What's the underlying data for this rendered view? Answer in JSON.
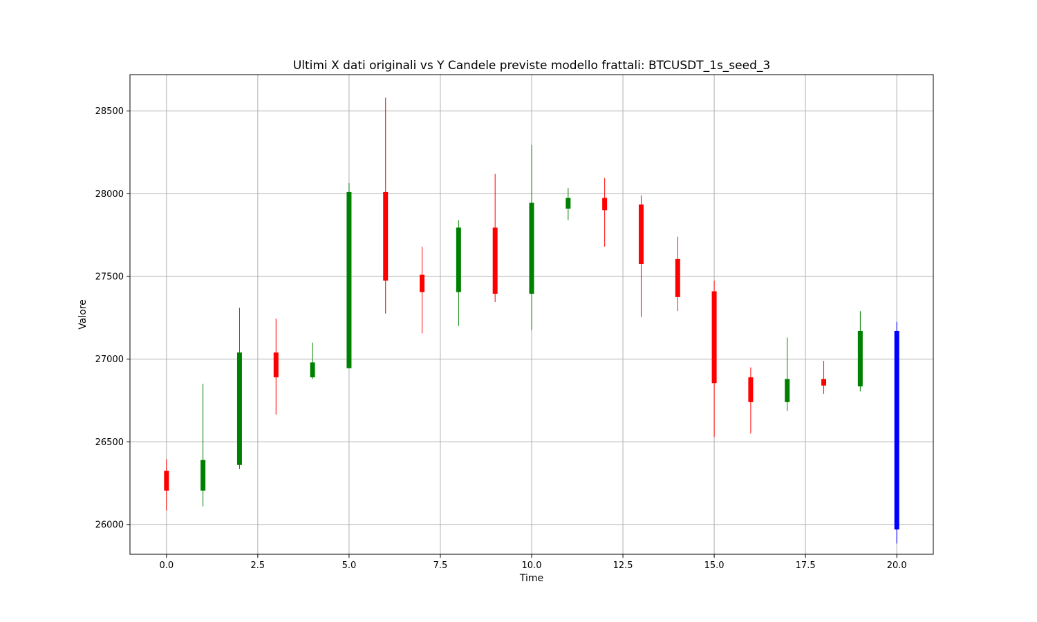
{
  "chart_data": {
    "type": "candlestick",
    "title": "Ultimi X dati originali vs Y Candele previste modello frattali: BTCUSDT_1s_seed_3",
    "xlabel": "Time",
    "ylabel": "Valore",
    "xlim": [
      -1.0,
      21.0
    ],
    "ylim": [
      25820,
      28720
    ],
    "xticks": [
      0.0,
      2.5,
      5.0,
      7.5,
      10.0,
      12.5,
      15.0,
      17.5,
      20.0
    ],
    "xtick_labels": [
      "0.0",
      "2.5",
      "5.0",
      "7.5",
      "10.0",
      "12.5",
      "15.0",
      "17.5",
      "20.0"
    ],
    "yticks": [
      26000,
      26500,
      27000,
      27500,
      28000,
      28500
    ],
    "ytick_labels": [
      "26000",
      "26500",
      "27000",
      "27500",
      "28000",
      "28500"
    ],
    "grid": true,
    "colors": {
      "up": "#008000",
      "down": "#ff0000",
      "forecast": "#0000ff"
    },
    "candles": [
      {
        "t": 0,
        "open": 26325,
        "high": 26395,
        "low": 26085,
        "close": 26205,
        "color": "down"
      },
      {
        "t": 1,
        "open": 26205,
        "high": 26850,
        "low": 26110,
        "close": 26390,
        "color": "up"
      },
      {
        "t": 2,
        "open": 26360,
        "high": 27310,
        "low": 26335,
        "close": 27040,
        "color": "up"
      },
      {
        "t": 3,
        "open": 27040,
        "high": 27245,
        "low": 26665,
        "close": 26890,
        "color": "down"
      },
      {
        "t": 4,
        "open": 26890,
        "high": 27100,
        "low": 26880,
        "close": 26980,
        "color": "up"
      },
      {
        "t": 5,
        "open": 26945,
        "high": 28065,
        "low": 26945,
        "close": 28010,
        "color": "up"
      },
      {
        "t": 6,
        "open": 28010,
        "high": 28580,
        "low": 27275,
        "close": 27475,
        "color": "down"
      },
      {
        "t": 7,
        "open": 27510,
        "high": 27680,
        "low": 27155,
        "close": 27405,
        "color": "down"
      },
      {
        "t": 8,
        "open": 27405,
        "high": 27840,
        "low": 27200,
        "close": 27795,
        "color": "up"
      },
      {
        "t": 9,
        "open": 27795,
        "high": 28120,
        "low": 27345,
        "close": 27395,
        "color": "down"
      },
      {
        "t": 10,
        "open": 27395,
        "high": 28295,
        "low": 27175,
        "close": 27945,
        "color": "up"
      },
      {
        "t": 11,
        "open": 27910,
        "high": 28035,
        "low": 27840,
        "close": 27975,
        "color": "up"
      },
      {
        "t": 12,
        "open": 27975,
        "high": 28095,
        "low": 27680,
        "close": 27900,
        "color": "down"
      },
      {
        "t": 13,
        "open": 27935,
        "high": 27990,
        "low": 27255,
        "close": 27575,
        "color": "down"
      },
      {
        "t": 14,
        "open": 27605,
        "high": 27740,
        "low": 27290,
        "close": 27375,
        "color": "down"
      },
      {
        "t": 15,
        "open": 27410,
        "high": 27475,
        "low": 26530,
        "close": 26855,
        "color": "down"
      },
      {
        "t": 16,
        "open": 26890,
        "high": 26950,
        "low": 26550,
        "close": 26740,
        "color": "down"
      },
      {
        "t": 17,
        "open": 26740,
        "high": 27130,
        "low": 26685,
        "close": 26880,
        "color": "up"
      },
      {
        "t": 18,
        "open": 26880,
        "high": 26990,
        "low": 26790,
        "close": 26840,
        "color": "down"
      },
      {
        "t": 19,
        "open": 26835,
        "high": 27290,
        "low": 26805,
        "close": 27170,
        "color": "up"
      },
      {
        "t": 20,
        "open": 27170,
        "high": 27225,
        "low": 25885,
        "close": 25970,
        "color": "forecast"
      }
    ]
  }
}
